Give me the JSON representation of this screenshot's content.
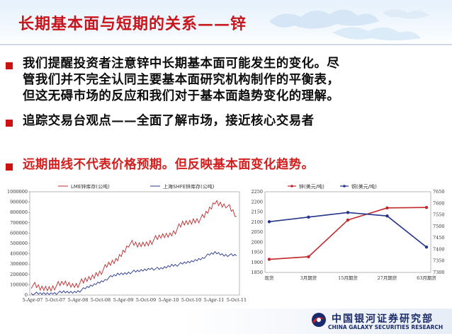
{
  "slide": {
    "title": "长期基本面与短期的关系——锌",
    "bullets": [
      {
        "lines": [
          "我们提醒投资者注意锌中长期基本面可能发生的变化。尽",
          "管我们并不完全认同主要基本面研究机构制作的平衡表，",
          "但这无碍市场的反应和我们对于基本面趋势变化的理解。"
        ],
        "color": "black"
      },
      {
        "lines": [
          "追踪交易台观点——全面了解市场，接近核心交易者"
        ],
        "color": "black"
      },
      {
        "lines": [
          "远期曲线不代表价格预期。但反映基本面变化趋势。"
        ],
        "color": "red"
      }
    ]
  },
  "footer": {
    "logo_cn": "中国银河证券研究部",
    "logo_en": "CHINA GALAXY SECURITIES RESEARCH"
  },
  "colors": {
    "title_red": "#c8151c",
    "bullet_red": "#cc1111",
    "series_red": "#c0282a",
    "series_blue": "#25358c"
  },
  "chart_data": [
    {
      "type": "line",
      "title": "",
      "xlabel": "",
      "ylabel": "",
      "ylim": [
        0,
        1000000
      ],
      "yticks": [
        "0",
        "100000",
        "200000",
        "300000",
        "400000",
        "500000",
        "600000",
        "700000",
        "800000",
        "900000",
        "1000000"
      ],
      "xticks": [
        "5-Apr-07",
        "5-Oct-07",
        "5-Apr-08",
        "5-Oct-08",
        "5-Apr-09",
        "5-Oct-09",
        "5-Apr-10",
        "5-Oct-10",
        "5-Apr-11",
        "5-Oct-11"
      ],
      "series": [
        {
          "name": "LME锌库存(公吨)",
          "color": "#c0282a",
          "values": [
            100000,
            60000,
            80000,
            110000,
            100000,
            130000,
            200000,
            270000,
            350000,
            500000,
            480000,
            520000,
            560000,
            600000,
            680000,
            720000,
            750000,
            900000,
            880000,
            760000
          ]
        },
        {
          "name": "上海SHFE锌库存(公吨)",
          "color": "#25358c",
          "values": [
            15000,
            10000,
            20000,
            25000,
            30000,
            60000,
            110000,
            160000,
            200000,
            220000,
            230000,
            260000,
            250000,
            290000,
            300000,
            330000,
            370000,
            410000,
            390000,
            380000
          ]
        }
      ]
    },
    {
      "type": "line",
      "title": "",
      "categories": [
        "现货",
        "3月期货",
        "15月期货",
        "27月期货",
        "63月期货"
      ],
      "ylim": [
        1850,
        2250
      ],
      "yticks_left": [
        "1850",
        "1900",
        "1950",
        "2000",
        "2050",
        "2100",
        "2150",
        "2200",
        "2250"
      ],
      "y2lim": [
        7300,
        7650
      ],
      "yticks_right": [
        "7300",
        "7350",
        "7400",
        "7450",
        "7500",
        "7550",
        "7600",
        "7650"
      ],
      "series": [
        {
          "name": "锌(美元/吨)",
          "color": "#c0282a",
          "axis": "left",
          "values": [
            1915,
            1928,
            2110,
            2170,
            2172
          ]
        },
        {
          "name": "铜(美元/吨)",
          "color": "#25358c",
          "axis": "right",
          "values": [
            7520,
            7540,
            7560,
            7545,
            7410
          ]
        }
      ]
    }
  ]
}
